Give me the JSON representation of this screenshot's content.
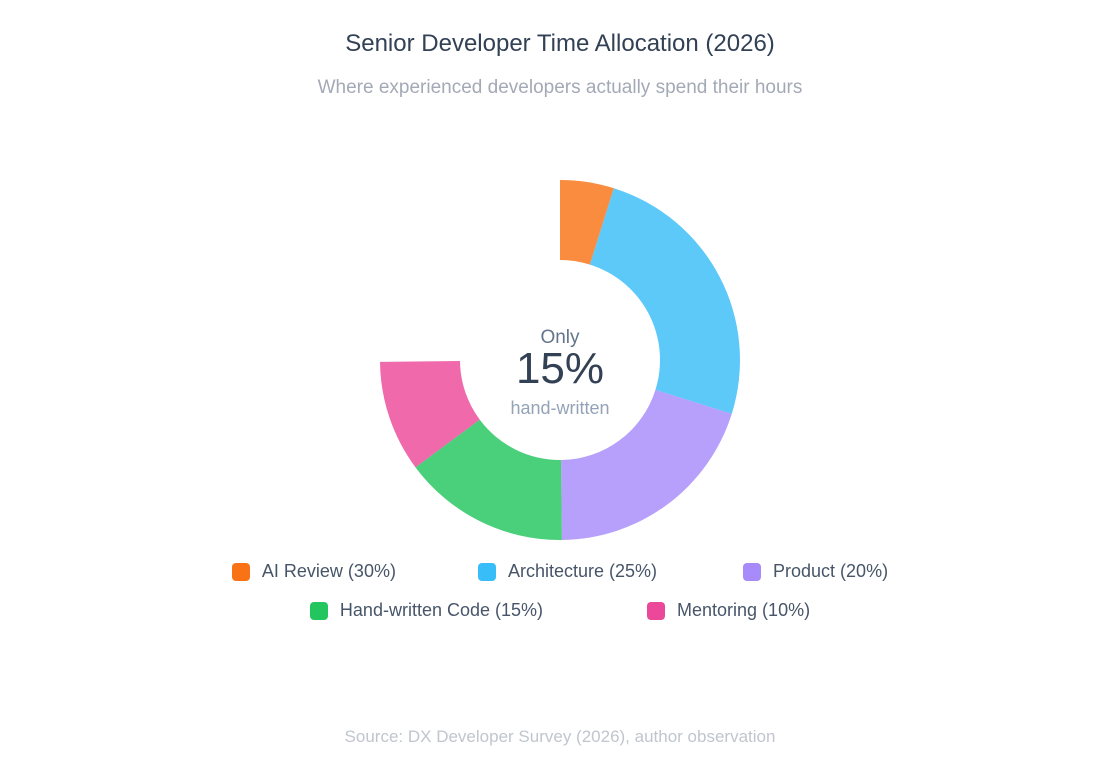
{
  "chart_data": {
    "type": "pie",
    "variant": "donut",
    "title": "Senior Developer Time Allocation (2026)",
    "subtitle": "Where experienced developers actually spend their hours",
    "center_label": {
      "top": "Only",
      "value": "15%",
      "bottom": "hand-written"
    },
    "legend_position": "bottom",
    "slices": [
      {
        "label": "AI Review (30%)",
        "value": 30,
        "color": "#f97316"
      },
      {
        "label": "Architecture (25%)",
        "value": 25,
        "color": "#38bdf8"
      },
      {
        "label": "Product (20%)",
        "value": 20,
        "color": "#a78bfa"
      },
      {
        "label": "Hand-written Code (15%)",
        "value": 15,
        "color": "#22c55e"
      },
      {
        "label": "Mentoring (10%)",
        "value": 10,
        "color": "#ec4899"
      }
    ],
    "source": "Source: DX Developer Survey (2026), author observation"
  }
}
